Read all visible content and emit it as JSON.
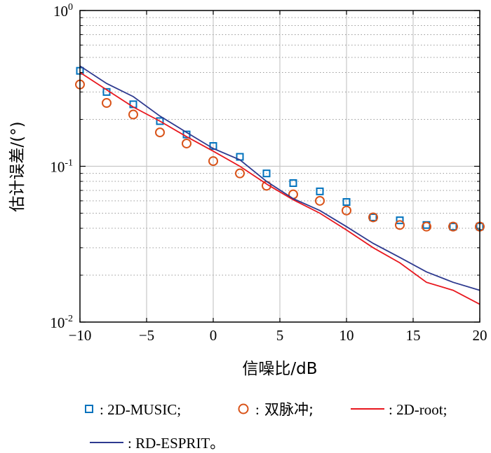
{
  "chart_data": {
    "type": "line",
    "xlabel": "信噪比/dB",
    "ylabel": "估计误差/(°)",
    "xlim": [
      -10,
      20
    ],
    "ylim": [
      0.01,
      1
    ],
    "yscale": "log",
    "grid": true,
    "x_ticks": [
      "−10",
      "−5",
      "0",
      "5",
      "10",
      "15",
      "20"
    ],
    "y_ticks": [
      {
        "base": "10",
        "exp": "-2"
      },
      {
        "base": "10",
        "exp": "-1"
      },
      {
        "base": "10",
        "exp": "0"
      }
    ],
    "legend_position": "bottom",
    "series": [
      {
        "name": "2D-MUSIC",
        "legend_label": ": 2D-MUSIC;",
        "marker": "square",
        "color": "#0072BD",
        "x": [
          -10,
          -8,
          -6,
          -4,
          -2,
          0,
          2,
          4,
          6,
          8,
          10,
          12,
          14,
          16,
          18,
          20
        ],
        "y": [
          0.41,
          0.3,
          0.25,
          0.195,
          0.16,
          0.135,
          0.115,
          0.09,
          0.078,
          0.069,
          0.059,
          0.047,
          0.045,
          0.042,
          0.041,
          0.041
        ]
      },
      {
        "name": "双脉冲",
        "legend_label": "双脉冲;",
        "legend_prefix": ": ",
        "marker": "circle",
        "color": "#D95319",
        "x": [
          -10,
          -8,
          -6,
          -4,
          -2,
          0,
          2,
          4,
          6,
          8,
          10,
          12,
          14,
          16,
          18,
          20
        ],
        "y": [
          0.335,
          0.255,
          0.215,
          0.165,
          0.14,
          0.108,
          0.09,
          0.075,
          0.066,
          0.06,
          0.052,
          0.047,
          0.042,
          0.041,
          0.041,
          0.041
        ]
      },
      {
        "name": "2D-root",
        "legend_label": ": 2D-root;",
        "marker": "line",
        "color": "#E8171E",
        "x": [
          -10,
          -8,
          -6,
          -4,
          -2,
          0,
          2,
          4,
          6,
          8,
          10,
          12,
          14,
          16,
          18,
          20
        ],
        "y": [
          0.4,
          0.31,
          0.24,
          0.195,
          0.155,
          0.125,
          0.1,
          0.077,
          0.061,
          0.05,
          0.039,
          0.03,
          0.024,
          0.018,
          0.016,
          0.013
        ]
      },
      {
        "name": "RD-ESPRIT",
        "legend_label": ": RD-ESPRIT。",
        "marker": "line",
        "color": "#2E3A8F",
        "x": [
          -10,
          -8,
          -6,
          -4,
          -2,
          0,
          2,
          4,
          6,
          8,
          10,
          12,
          14,
          16,
          18,
          20
        ],
        "y": [
          0.44,
          0.34,
          0.28,
          0.21,
          0.165,
          0.13,
          0.11,
          0.08,
          0.062,
          0.052,
          0.041,
          0.032,
          0.026,
          0.021,
          0.018,
          0.016
        ]
      }
    ]
  }
}
